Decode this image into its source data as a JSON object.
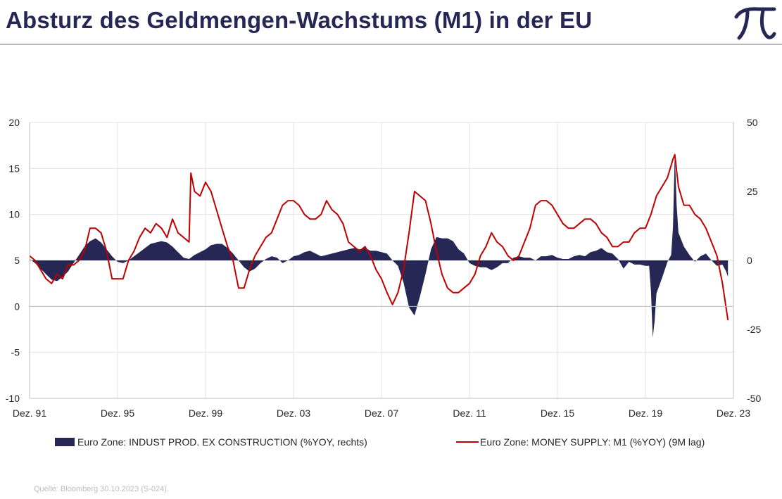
{
  "header": {
    "title": "Absturz des Geldmengen-Wachstums (M1) in der EU",
    "logo_glyph": "Π",
    "logo_icon": "pi-logo-icon"
  },
  "footer": {
    "source": "Quelle: Bloomberg 30.10.2023 (S-024)."
  },
  "chart_data": {
    "type": "line",
    "title": "",
    "xlabel": "",
    "ylabel_left": "",
    "ylabel_right": "",
    "x_range": [
      "1991-12",
      "2023-12"
    ],
    "x_ticks": [
      "Dez. 91",
      "Dez. 95",
      "Dez. 99",
      "Dez. 03",
      "Dez. 07",
      "Dez. 11",
      "Dez. 15",
      "Dez. 19",
      "Dez. 23"
    ],
    "y_left": {
      "min": -10,
      "max": 20,
      "ticks": [
        "20",
        "15",
        "10",
        "5",
        "0",
        "-5",
        "-10"
      ]
    },
    "y_right": {
      "min": -50,
      "max": 50,
      "ticks": [
        "50",
        "25",
        "0",
        "-25",
        "-50"
      ]
    },
    "grid": true,
    "legend_position": "bottom",
    "series": [
      {
        "name": "Euro Zone: INDUST PROD. EX CONSTRUCTION (%YOY, rechts)",
        "type": "area",
        "axis": "right",
        "color": "#262755",
        "points": [
          [
            "1991-12",
            0.5
          ],
          [
            "1992-03",
            -1
          ],
          [
            "1992-06",
            -3
          ],
          [
            "1992-09",
            -5
          ],
          [
            "1992-12",
            -7
          ],
          [
            "1993-03",
            -7.5
          ],
          [
            "1993-06",
            -6
          ],
          [
            "1993-09",
            -4
          ],
          [
            "1993-12",
            -1
          ],
          [
            "1994-03",
            2
          ],
          [
            "1994-06",
            5
          ],
          [
            "1994-09",
            7
          ],
          [
            "1994-12",
            8
          ],
          [
            "1995-03",
            6.5
          ],
          [
            "1995-06",
            4
          ],
          [
            "1995-09",
            1.5
          ],
          [
            "1995-12",
            -0.5
          ],
          [
            "1996-03",
            -1
          ],
          [
            "1996-06",
            0
          ],
          [
            "1996-09",
            1.5
          ],
          [
            "1996-12",
            3
          ],
          [
            "1997-03",
            4.5
          ],
          [
            "1997-06",
            6
          ],
          [
            "1997-09",
            6.5
          ],
          [
            "1997-12",
            7
          ],
          [
            "1998-03",
            6.5
          ],
          [
            "1998-06",
            5
          ],
          [
            "1998-09",
            3
          ],
          [
            "1998-12",
            1
          ],
          [
            "1999-03",
            0.5
          ],
          [
            "1999-06",
            2
          ],
          [
            "1999-09",
            3
          ],
          [
            "1999-12",
            4
          ],
          [
            "2000-03",
            5.5
          ],
          [
            "2000-06",
            6
          ],
          [
            "2000-09",
            6
          ],
          [
            "2000-12",
            4.5
          ],
          [
            "2001-03",
            2.5
          ],
          [
            "2001-06",
            0
          ],
          [
            "2001-09",
            -2.5
          ],
          [
            "2001-12",
            -4
          ],
          [
            "2002-03",
            -3
          ],
          [
            "2002-06",
            -1
          ],
          [
            "2002-09",
            0.5
          ],
          [
            "2002-12",
            1.5
          ],
          [
            "2003-03",
            1
          ],
          [
            "2003-06",
            -1
          ],
          [
            "2003-09",
            0
          ],
          [
            "2003-12",
            1.5
          ],
          [
            "2004-03",
            2
          ],
          [
            "2004-06",
            3
          ],
          [
            "2004-09",
            3.5
          ],
          [
            "2004-12",
            2.5
          ],
          [
            "2005-03",
            1.5
          ],
          [
            "2005-06",
            2
          ],
          [
            "2005-09",
            2.5
          ],
          [
            "2005-12",
            3
          ],
          [
            "2006-03",
            3.5
          ],
          [
            "2006-06",
            4
          ],
          [
            "2006-09",
            4.5
          ],
          [
            "2006-12",
            4
          ],
          [
            "2007-03",
            4.5
          ],
          [
            "2007-06",
            3.5
          ],
          [
            "2007-09",
            3.5
          ],
          [
            "2007-12",
            3
          ],
          [
            "2008-03",
            2.5
          ],
          [
            "2008-06",
            0
          ],
          [
            "2008-09",
            -2
          ],
          [
            "2008-12",
            -8
          ],
          [
            "2009-03",
            -17
          ],
          [
            "2009-06",
            -20
          ],
          [
            "2009-09",
            -13
          ],
          [
            "2009-12",
            -5
          ],
          [
            "2010-03",
            4
          ],
          [
            "2010-06",
            8.5
          ],
          [
            "2010-09",
            8
          ],
          [
            "2010-12",
            8
          ],
          [
            "2011-03",
            7
          ],
          [
            "2011-06",
            4
          ],
          [
            "2011-09",
            2.5
          ],
          [
            "2011-12",
            -1
          ],
          [
            "2012-03",
            -2
          ],
          [
            "2012-06",
            -2.5
          ],
          [
            "2012-09",
            -2.5
          ],
          [
            "2012-12",
            -3.5
          ],
          [
            "2013-03",
            -2.5
          ],
          [
            "2013-06",
            -1
          ],
          [
            "2013-09",
            -1
          ],
          [
            "2013-12",
            1
          ],
          [
            "2014-03",
            1.5
          ],
          [
            "2014-06",
            1
          ],
          [
            "2014-09",
            1
          ],
          [
            "2014-12",
            0
          ],
          [
            "2015-03",
            1.5
          ],
          [
            "2015-06",
            1.5
          ],
          [
            "2015-09",
            2
          ],
          [
            "2015-12",
            1
          ],
          [
            "2016-03",
            0.5
          ],
          [
            "2016-06",
            0.5
          ],
          [
            "2016-09",
            1.5
          ],
          [
            "2016-12",
            2
          ],
          [
            "2017-03",
            1.5
          ],
          [
            "2017-06",
            3
          ],
          [
            "2017-09",
            3.5
          ],
          [
            "2017-12",
            4.5
          ],
          [
            "2018-03",
            3
          ],
          [
            "2018-06",
            2.5
          ],
          [
            "2018-09",
            0.5
          ],
          [
            "2018-12",
            -3
          ],
          [
            "2019-03",
            -0.5
          ],
          [
            "2019-06",
            -1.5
          ],
          [
            "2019-09",
            -1.5
          ],
          [
            "2019-12",
            -2
          ],
          [
            "2020-01",
            -2
          ],
          [
            "2020-02",
            -2
          ],
          [
            "2020-03",
            -11
          ],
          [
            "2020-04",
            -28
          ],
          [
            "2020-05",
            -22
          ],
          [
            "2020-06",
            -12
          ],
          [
            "2020-09",
            -6.5
          ],
          [
            "2020-12",
            -0.5
          ],
          [
            "2021-02",
            2
          ],
          [
            "2021-03",
            12
          ],
          [
            "2021-04",
            39
          ],
          [
            "2021-05",
            20
          ],
          [
            "2021-06",
            10
          ],
          [
            "2021-09",
            5
          ],
          [
            "2021-12",
            2
          ],
          [
            "2022-03",
            -0.5
          ],
          [
            "2022-06",
            1.5
          ],
          [
            "2022-09",
            2.5
          ],
          [
            "2022-12",
            0
          ],
          [
            "2023-03",
            -2
          ],
          [
            "2023-06",
            -1.5
          ],
          [
            "2023-08",
            -4
          ],
          [
            "2023-09",
            -6
          ]
        ]
      },
      {
        "name": "Euro Zone: MONEY SUPPLY: M1 (%YOY) (9M lag)",
        "type": "line",
        "axis": "left",
        "color": "#c00000",
        "points": [
          [
            "1991-12",
            5.5
          ],
          [
            "1992-03",
            5
          ],
          [
            "1992-06",
            4
          ],
          [
            "1992-09",
            3
          ],
          [
            "1992-12",
            2.5
          ],
          [
            "1993-03",
            3.5
          ],
          [
            "1993-06",
            3
          ],
          [
            "1993-09",
            4.5
          ],
          [
            "1993-12",
            4.5
          ],
          [
            "1994-03",
            5
          ],
          [
            "1994-06",
            6
          ],
          [
            "1994-09",
            8.5
          ],
          [
            "1994-12",
            8.5
          ],
          [
            "1995-03",
            8
          ],
          [
            "1995-06",
            6
          ],
          [
            "1995-09",
            3
          ],
          [
            "1995-12",
            3
          ],
          [
            "1996-03",
            3
          ],
          [
            "1996-06",
            5
          ],
          [
            "1996-09",
            6
          ],
          [
            "1996-12",
            7.5
          ],
          [
            "1997-03",
            8.5
          ],
          [
            "1997-06",
            8
          ],
          [
            "1997-09",
            9
          ],
          [
            "1997-12",
            8.5
          ],
          [
            "1998-03",
            7.5
          ],
          [
            "1998-06",
            9.5
          ],
          [
            "1998-09",
            8
          ],
          [
            "1998-12",
            7.5
          ],
          [
            "1999-03",
            7
          ],
          [
            "1999-04",
            14.5
          ],
          [
            "1999-06",
            12.5
          ],
          [
            "1999-09",
            12
          ],
          [
            "1999-12",
            13.5
          ],
          [
            "2000-03",
            12.5
          ],
          [
            "2000-06",
            10.5
          ],
          [
            "2000-09",
            8.5
          ],
          [
            "2000-12",
            6.5
          ],
          [
            "2001-03",
            5
          ],
          [
            "2001-06",
            2
          ],
          [
            "2001-09",
            2
          ],
          [
            "2001-12",
            4
          ],
          [
            "2002-03",
            5.5
          ],
          [
            "2002-06",
            6.5
          ],
          [
            "2002-09",
            7.5
          ],
          [
            "2002-12",
            8
          ],
          [
            "2003-03",
            9.5
          ],
          [
            "2003-06",
            11
          ],
          [
            "2003-09",
            11.5
          ],
          [
            "2003-12",
            11.5
          ],
          [
            "2004-03",
            11
          ],
          [
            "2004-06",
            10
          ],
          [
            "2004-09",
            9.5
          ],
          [
            "2004-12",
            9.5
          ],
          [
            "2005-03",
            10
          ],
          [
            "2005-06",
            11.5
          ],
          [
            "2005-09",
            10.5
          ],
          [
            "2005-12",
            10
          ],
          [
            "2006-03",
            9
          ],
          [
            "2006-06",
            7
          ],
          [
            "2006-09",
            6.5
          ],
          [
            "2006-12",
            6
          ],
          [
            "2007-03",
            6.5
          ],
          [
            "2007-06",
            5.5
          ],
          [
            "2007-09",
            4
          ],
          [
            "2007-12",
            3
          ],
          [
            "2008-03",
            1.5
          ],
          [
            "2008-06",
            0.2
          ],
          [
            "2008-09",
            1.5
          ],
          [
            "2008-12",
            4
          ],
          [
            "2009-03",
            8
          ],
          [
            "2009-06",
            12.5
          ],
          [
            "2009-09",
            12
          ],
          [
            "2009-12",
            11.5
          ],
          [
            "2010-03",
            9
          ],
          [
            "2010-06",
            6
          ],
          [
            "2010-09",
            3.5
          ],
          [
            "2010-12",
            2
          ],
          [
            "2011-03",
            1.5
          ],
          [
            "2011-06",
            1.5
          ],
          [
            "2011-09",
            2
          ],
          [
            "2011-12",
            2.5
          ],
          [
            "2012-03",
            3.5
          ],
          [
            "2012-06",
            5.5
          ],
          [
            "2012-09",
            6.5
          ],
          [
            "2012-12",
            8
          ],
          [
            "2013-03",
            7
          ],
          [
            "2013-06",
            6.5
          ],
          [
            "2013-09",
            5.5
          ],
          [
            "2013-12",
            5
          ],
          [
            "2014-03",
            5.5
          ],
          [
            "2014-06",
            7
          ],
          [
            "2014-09",
            8.5
          ],
          [
            "2014-12",
            11
          ],
          [
            "2015-03",
            11.5
          ],
          [
            "2015-06",
            11.5
          ],
          [
            "2015-09",
            11
          ],
          [
            "2015-12",
            10
          ],
          [
            "2016-03",
            9
          ],
          [
            "2016-06",
            8.5
          ],
          [
            "2016-09",
            8.5
          ],
          [
            "2016-12",
            9
          ],
          [
            "2017-03",
            9.5
          ],
          [
            "2017-06",
            9.5
          ],
          [
            "2017-09",
            9
          ],
          [
            "2017-12",
            8
          ],
          [
            "2018-03",
            7.5
          ],
          [
            "2018-06",
            6.5
          ],
          [
            "2018-09",
            6.5
          ],
          [
            "2018-12",
            7
          ],
          [
            "2019-03",
            7
          ],
          [
            "2019-06",
            8
          ],
          [
            "2019-09",
            8.5
          ],
          [
            "2019-12",
            8.5
          ],
          [
            "2020-03",
            10
          ],
          [
            "2020-06",
            12
          ],
          [
            "2020-09",
            13
          ],
          [
            "2020-12",
            14
          ],
          [
            "2021-03",
            16
          ],
          [
            "2021-04",
            16.5
          ],
          [
            "2021-06",
            13
          ],
          [
            "2021-09",
            11
          ],
          [
            "2021-12",
            11
          ],
          [
            "2022-03",
            10
          ],
          [
            "2022-06",
            9.5
          ],
          [
            "2022-09",
            8.5
          ],
          [
            "2022-12",
            7
          ],
          [
            "2023-03",
            5.5
          ],
          [
            "2023-06",
            2.5
          ],
          [
            "2023-09",
            -1.5
          ]
        ]
      }
    ]
  }
}
